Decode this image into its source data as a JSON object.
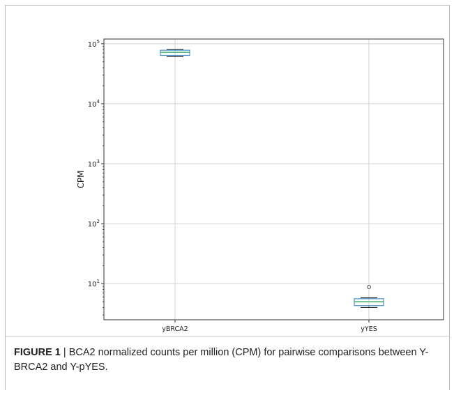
{
  "chart_data": {
    "type": "box",
    "ylabel": "CPM",
    "yscale": "log",
    "ylim": [
      2.5,
      120000
    ],
    "yticks": [
      {
        "value": 10,
        "base": "10",
        "exp": "1"
      },
      {
        "value": 100,
        "base": "10",
        "exp": "2"
      },
      {
        "value": 1000,
        "base": "10",
        "exp": "3"
      },
      {
        "value": 10000,
        "base": "10",
        "exp": "4"
      },
      {
        "value": 100000,
        "base": "10",
        "exp": "5"
      }
    ],
    "categories": [
      "yBRCA2",
      "yYES"
    ],
    "boxes": [
      {
        "name": "yBRCA2",
        "whisker_low": 61000,
        "q1": 64000,
        "median": 72000,
        "q3": 78000,
        "whisker_high": 80000,
        "outliers": []
      },
      {
        "name": "yYES",
        "whisker_low": 4.0,
        "q1": 4.3,
        "median": 5.0,
        "q3": 5.6,
        "whisker_high": 5.8,
        "outliers": [
          8.8
        ]
      }
    ],
    "grid": true,
    "box_color": "#4a90c8",
    "median_color": "#3fae6a"
  },
  "caption": {
    "label": "FIGURE 1",
    "separator": " | ",
    "text": "BCA2 normalized counts per million (CPM) for pairwise comparisons between Y- BRCA2 and Y-pYES."
  }
}
